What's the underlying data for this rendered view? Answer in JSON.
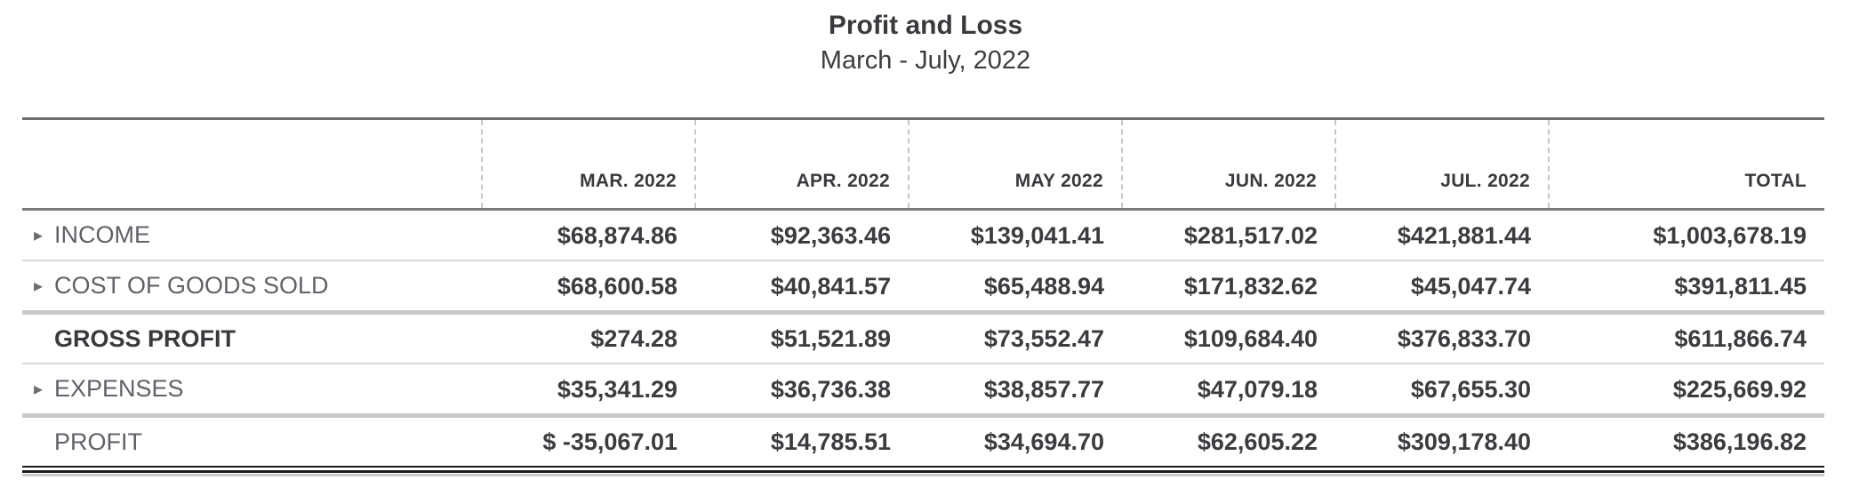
{
  "report": {
    "title": "Profit and Loss",
    "period": "March - July, 2022"
  },
  "colors": {
    "text_dark": "#393a3d",
    "text_label_gray": "#606268",
    "rule_dark_gray": "#6d6d6d",
    "rule_light_gray": "#c8c9cb",
    "row_separator": "#dadada",
    "dashed_divider": "#c6c6c6",
    "bottom_double_rule": "#1b1b1b"
  },
  "table": {
    "columns": [
      "",
      "MAR. 2022",
      "APR. 2022",
      "MAY 2022",
      "JUN. 2022",
      "JUL. 2022",
      "TOTAL"
    ],
    "rows": [
      {
        "label": "INCOME",
        "expandable": true,
        "emphasis": false,
        "separator": "thin",
        "values": [
          "$68,874.86",
          "$92,363.46",
          "$139,041.41",
          "$281,517.02",
          "$421,881.44",
          "$1,003,678.19"
        ]
      },
      {
        "label": "COST OF GOODS SOLD",
        "expandable": true,
        "emphasis": false,
        "separator": "thick",
        "values": [
          "$68,600.58",
          "$40,841.57",
          "$65,488.94",
          "$171,832.62",
          "$45,047.74",
          "$391,811.45"
        ]
      },
      {
        "label": "GROSS PROFIT",
        "expandable": false,
        "emphasis": true,
        "separator": "thin",
        "values": [
          "$274.28",
          "$51,521.89",
          "$73,552.47",
          "$109,684.40",
          "$376,833.70",
          "$611,866.74"
        ]
      },
      {
        "label": "EXPENSES",
        "expandable": true,
        "emphasis": false,
        "separator": "thick",
        "values": [
          "$35,341.29",
          "$36,736.38",
          "$38,857.77",
          "$47,079.18",
          "$67,655.30",
          "$225,669.92"
        ]
      },
      {
        "label": "PROFIT",
        "expandable": false,
        "emphasis": false,
        "separator": "double",
        "values": [
          "$ -35,067.01",
          "$14,785.51",
          "$34,694.70",
          "$62,605.22",
          "$309,178.40",
          "$386,196.82"
        ]
      }
    ]
  },
  "icons": {
    "expand_arrow": "▸"
  }
}
